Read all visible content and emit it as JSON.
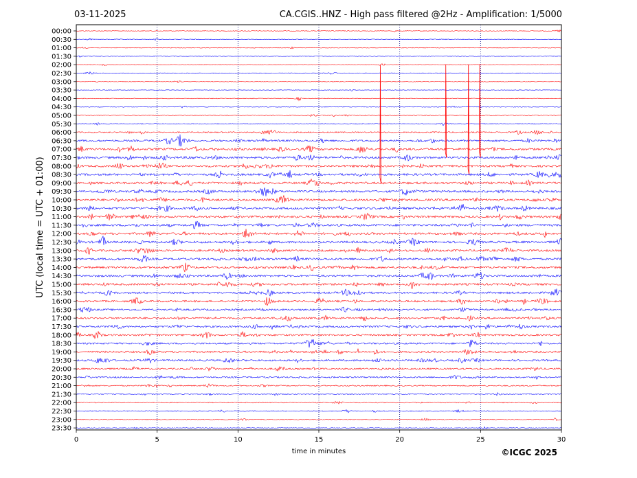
{
  "chart_data": {
    "type": "helicorder",
    "date": "03-11-2025",
    "title": "CA.CGIS..HNZ - High pass filtered @2Hz - Amplification: 1/5000",
    "xlabel": "time in minutes",
    "ylabel": "UTC (local time = UTC + 01:00)",
    "copyright": "©ICGC 2025",
    "xlim": [
      0,
      30
    ],
    "x_ticks": [
      0,
      5,
      10,
      15,
      20,
      25,
      30
    ],
    "x_tick_labels": [
      "0",
      "5",
      "10",
      "15",
      "20",
      "25",
      "30"
    ],
    "vertical_gridlines": [
      5,
      10,
      15,
      20,
      25
    ],
    "trace_colors": [
      "#ff0000",
      "#0000ff"
    ],
    "rows": [
      "00:00",
      "00:30",
      "01:00",
      "01:30",
      "02:00",
      "02:30",
      "03:00",
      "03:30",
      "04:00",
      "04:30",
      "05:00",
      "05:30",
      "06:00",
      "06:30",
      "07:00",
      "07:30",
      "08:00",
      "08:30",
      "09:00",
      "09:30",
      "10:00",
      "10:30",
      "11:00",
      "11:30",
      "12:00",
      "12:30",
      "13:00",
      "13:30",
      "14:00",
      "14:30",
      "15:00",
      "15:30",
      "16:00",
      "16:30",
      "17:00",
      "17:30",
      "18:00",
      "18:30",
      "19:00",
      "19:30",
      "20:00",
      "20:30",
      "21:00",
      "21:30",
      "22:00",
      "22:30",
      "23:00",
      "23:30"
    ],
    "activity_level": [
      0.15,
      0.15,
      0.15,
      0.1,
      0.15,
      0.15,
      0.15,
      0.1,
      0.15,
      0.15,
      0.2,
      0.25,
      0.5,
      0.8,
      0.9,
      0.9,
      0.9,
      0.9,
      0.9,
      0.9,
      0.9,
      0.9,
      0.9,
      0.9,
      0.9,
      0.9,
      0.85,
      0.85,
      0.85,
      0.85,
      0.85,
      0.8,
      0.8,
      0.75,
      0.75,
      0.75,
      0.75,
      0.7,
      0.75,
      0.75,
      0.65,
      0.55,
      0.4,
      0.3,
      0.3,
      0.25,
      0.2,
      0.15
    ],
    "spikes": [
      {
        "time": "02:00",
        "x": 18.8,
        "rows_spanned": 14
      },
      {
        "time": "02:00",
        "x": 22.85,
        "rows_spanned": 11
      },
      {
        "time": "02:00",
        "x": 24.25,
        "rows_spanned": 13
      },
      {
        "time": "02:00",
        "x": 24.95,
        "rows_spanned": 11
      }
    ]
  }
}
